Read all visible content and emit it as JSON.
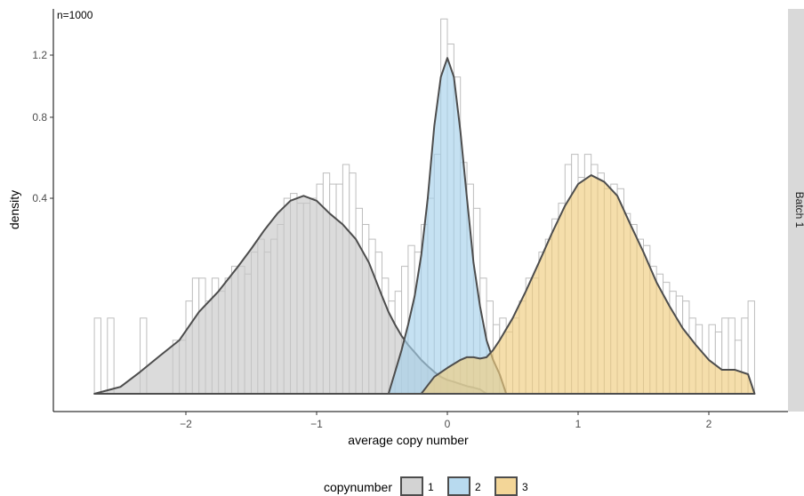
{
  "chart_data": {
    "type": "histogram-density",
    "annotation": "n=1000",
    "xlabel": "average copy number",
    "ylabel": "density",
    "strip_label": "Batch 1",
    "xlim": [
      -2.85,
      2.5
    ],
    "y_scale": "sqrt",
    "ylim": [
      0,
      1.55
    ],
    "x_ticks": [
      -2,
      -1,
      0,
      1,
      2
    ],
    "x_tick_labels": [
      "−2",
      "−1",
      "0",
      "1",
      "2"
    ],
    "y_ticks": [
      0.4,
      0.8,
      1.2
    ],
    "y_tick_labels": [
      "0.4",
      "0.8",
      "1.2"
    ],
    "grid": false,
    "legend": {
      "title": "copynumber",
      "position": "bottom",
      "entries": [
        {
          "label": "1",
          "color": "#C8C8C8"
        },
        {
          "label": "2",
          "color": "#A6D1EB"
        },
        {
          "label": "3",
          "color": "#F0CC7E"
        }
      ]
    },
    "histogram": {
      "bin_width": 0.05,
      "bins": [
        {
          "x": -2.675,
          "y": 0.06
        },
        {
          "x": -2.575,
          "y": 0.06
        },
        {
          "x": -2.325,
          "y": 0.06
        },
        {
          "x": -2.075,
          "y": 0.03
        },
        {
          "x": -2.025,
          "y": 0.03
        },
        {
          "x": -1.975,
          "y": 0.09
        },
        {
          "x": -1.925,
          "y": 0.14
        },
        {
          "x": -1.875,
          "y": 0.14
        },
        {
          "x": -1.825,
          "y": 0.09
        },
        {
          "x": -1.775,
          "y": 0.14
        },
        {
          "x": -1.725,
          "y": 0.11
        },
        {
          "x": -1.675,
          "y": 0.14
        },
        {
          "x": -1.625,
          "y": 0.17
        },
        {
          "x": -1.575,
          "y": 0.17
        },
        {
          "x": -1.525,
          "y": 0.15
        },
        {
          "x": -1.475,
          "y": 0.21
        },
        {
          "x": -1.425,
          "y": 0.25
        },
        {
          "x": -1.375,
          "y": 0.21
        },
        {
          "x": -1.325,
          "y": 0.25
        },
        {
          "x": -1.275,
          "y": 0.3
        },
        {
          "x": -1.225,
          "y": 0.4
        },
        {
          "x": -1.175,
          "y": 0.42
        },
        {
          "x": -1.125,
          "y": 0.38
        },
        {
          "x": -1.075,
          "y": 0.38
        },
        {
          "x": -1.025,
          "y": 0.4
        },
        {
          "x": -0.975,
          "y": 0.46
        },
        {
          "x": -0.925,
          "y": 0.51
        },
        {
          "x": -0.875,
          "y": 0.46
        },
        {
          "x": -0.825,
          "y": 0.46
        },
        {
          "x": -0.775,
          "y": 0.55
        },
        {
          "x": -0.725,
          "y": 0.51
        },
        {
          "x": -0.675,
          "y": 0.36
        },
        {
          "x": -0.625,
          "y": 0.3
        },
        {
          "x": -0.575,
          "y": 0.25
        },
        {
          "x": -0.525,
          "y": 0.21
        },
        {
          "x": -0.475,
          "y": 0.14
        },
        {
          "x": -0.425,
          "y": 0.09
        },
        {
          "x": -0.375,
          "y": 0.11
        },
        {
          "x": -0.325,
          "y": 0.17
        },
        {
          "x": -0.275,
          "y": 0.23
        },
        {
          "x": -0.225,
          "y": 0.21
        },
        {
          "x": -0.175,
          "y": 0.3
        },
        {
          "x": -0.125,
          "y": 0.4
        },
        {
          "x": -0.075,
          "y": 0.6
        },
        {
          "x": -0.025,
          "y": 1.47
        },
        {
          "x": 0.025,
          "y": 1.28
        },
        {
          "x": 0.075,
          "y": 1.05
        },
        {
          "x": 0.125,
          "y": 0.56
        },
        {
          "x": 0.175,
          "y": 0.46
        },
        {
          "x": 0.225,
          "y": 0.36
        },
        {
          "x": 0.275,
          "y": 0.14
        },
        {
          "x": 0.325,
          "y": 0.09
        },
        {
          "x": 0.375,
          "y": 0.05
        },
        {
          "x": 0.425,
          "y": 0.06
        },
        {
          "x": 0.475,
          "y": 0.04
        },
        {
          "x": 0.525,
          "y": 0.06
        },
        {
          "x": 0.575,
          "y": 0.09
        },
        {
          "x": 0.625,
          "y": 0.14
        },
        {
          "x": 0.675,
          "y": 0.14
        },
        {
          "x": 0.725,
          "y": 0.21
        },
        {
          "x": 0.775,
          "y": 0.25
        },
        {
          "x": 0.825,
          "y": 0.32
        },
        {
          "x": 0.875,
          "y": 0.38
        },
        {
          "x": 0.925,
          "y": 0.55
        },
        {
          "x": 0.975,
          "y": 0.6
        },
        {
          "x": 1.025,
          "y": 0.49
        },
        {
          "x": 1.075,
          "y": 0.6
        },
        {
          "x": 1.125,
          "y": 0.55
        },
        {
          "x": 1.175,
          "y": 0.51
        },
        {
          "x": 1.225,
          "y": 0.44
        },
        {
          "x": 1.275,
          "y": 0.46
        },
        {
          "x": 1.325,
          "y": 0.44
        },
        {
          "x": 1.375,
          "y": 0.34
        },
        {
          "x": 1.425,
          "y": 0.3
        },
        {
          "x": 1.475,
          "y": 0.25
        },
        {
          "x": 1.525,
          "y": 0.23
        },
        {
          "x": 1.575,
          "y": 0.17
        },
        {
          "x": 1.625,
          "y": 0.15
        },
        {
          "x": 1.675,
          "y": 0.13
        },
        {
          "x": 1.725,
          "y": 0.11
        },
        {
          "x": 1.775,
          "y": 0.1
        },
        {
          "x": 1.825,
          "y": 0.09
        },
        {
          "x": 1.875,
          "y": 0.06
        },
        {
          "x": 1.925,
          "y": 0.05
        },
        {
          "x": 2.025,
          "y": 0.05
        },
        {
          "x": 2.075,
          "y": 0.04
        },
        {
          "x": 2.125,
          "y": 0.06
        },
        {
          "x": 2.175,
          "y": 0.06
        },
        {
          "x": 2.225,
          "y": 0.03
        },
        {
          "x": 2.275,
          "y": 0.06
        },
        {
          "x": 2.325,
          "y": 0.09
        }
      ]
    },
    "series": [
      {
        "name": "1",
        "color": "#C8C8C8",
        "x": [
          -2.7,
          -2.5,
          -2.35,
          -2.2,
          -2.05,
          -1.9,
          -1.75,
          -1.6,
          -1.5,
          -1.4,
          -1.3,
          -1.2,
          -1.1,
          -1.0,
          -0.9,
          -0.8,
          -0.7,
          -0.6,
          -0.5,
          -0.45,
          -0.4,
          -0.35,
          -0.3,
          -0.25,
          -0.2,
          -0.15,
          -0.1,
          -0.05,
          0.0,
          0.05,
          0.1,
          0.15,
          0.2,
          0.25,
          0.3
        ],
        "y": [
          0.0,
          0.0005,
          0.005,
          0.015,
          0.03,
          0.07,
          0.11,
          0.17,
          0.22,
          0.28,
          0.34,
          0.39,
          0.41,
          0.39,
          0.34,
          0.3,
          0.25,
          0.18,
          0.1,
          0.07,
          0.05,
          0.035,
          0.025,
          0.018,
          0.012,
          0.008,
          0.005,
          0.003,
          0.002,
          0.0015,
          0.001,
          0.0006,
          0.0004,
          0.0002,
          0.0
        ]
      },
      {
        "name": "2",
        "color": "#A6D1EB",
        "x": [
          -0.45,
          -0.4,
          -0.35,
          -0.3,
          -0.25,
          -0.2,
          -0.15,
          -0.1,
          -0.05,
          0.0,
          0.05,
          0.1,
          0.15,
          0.2,
          0.25,
          0.3,
          0.35,
          0.4,
          0.45
        ],
        "y": [
          0.0,
          0.005,
          0.02,
          0.05,
          0.1,
          0.2,
          0.4,
          0.75,
          1.05,
          1.18,
          1.05,
          0.72,
          0.4,
          0.18,
          0.08,
          0.03,
          0.012,
          0.004,
          0.0
        ]
      },
      {
        "name": "3",
        "color": "#F0CC7E",
        "x": [
          -0.2,
          -0.1,
          0.0,
          0.1,
          0.15,
          0.2,
          0.25,
          0.3,
          0.35,
          0.4,
          0.5,
          0.6,
          0.7,
          0.8,
          0.9,
          1.0,
          1.1,
          1.2,
          1.3,
          1.4,
          1.5,
          1.6,
          1.7,
          1.8,
          1.9,
          2.0,
          2.1,
          2.2,
          2.3,
          2.35
        ],
        "y": [
          0.0,
          0.003,
          0.007,
          0.012,
          0.014,
          0.014,
          0.013,
          0.014,
          0.02,
          0.03,
          0.06,
          0.11,
          0.18,
          0.27,
          0.37,
          0.46,
          0.5,
          0.47,
          0.41,
          0.3,
          0.21,
          0.13,
          0.08,
          0.045,
          0.025,
          0.012,
          0.006,
          0.006,
          0.004,
          0.0
        ]
      }
    ]
  }
}
